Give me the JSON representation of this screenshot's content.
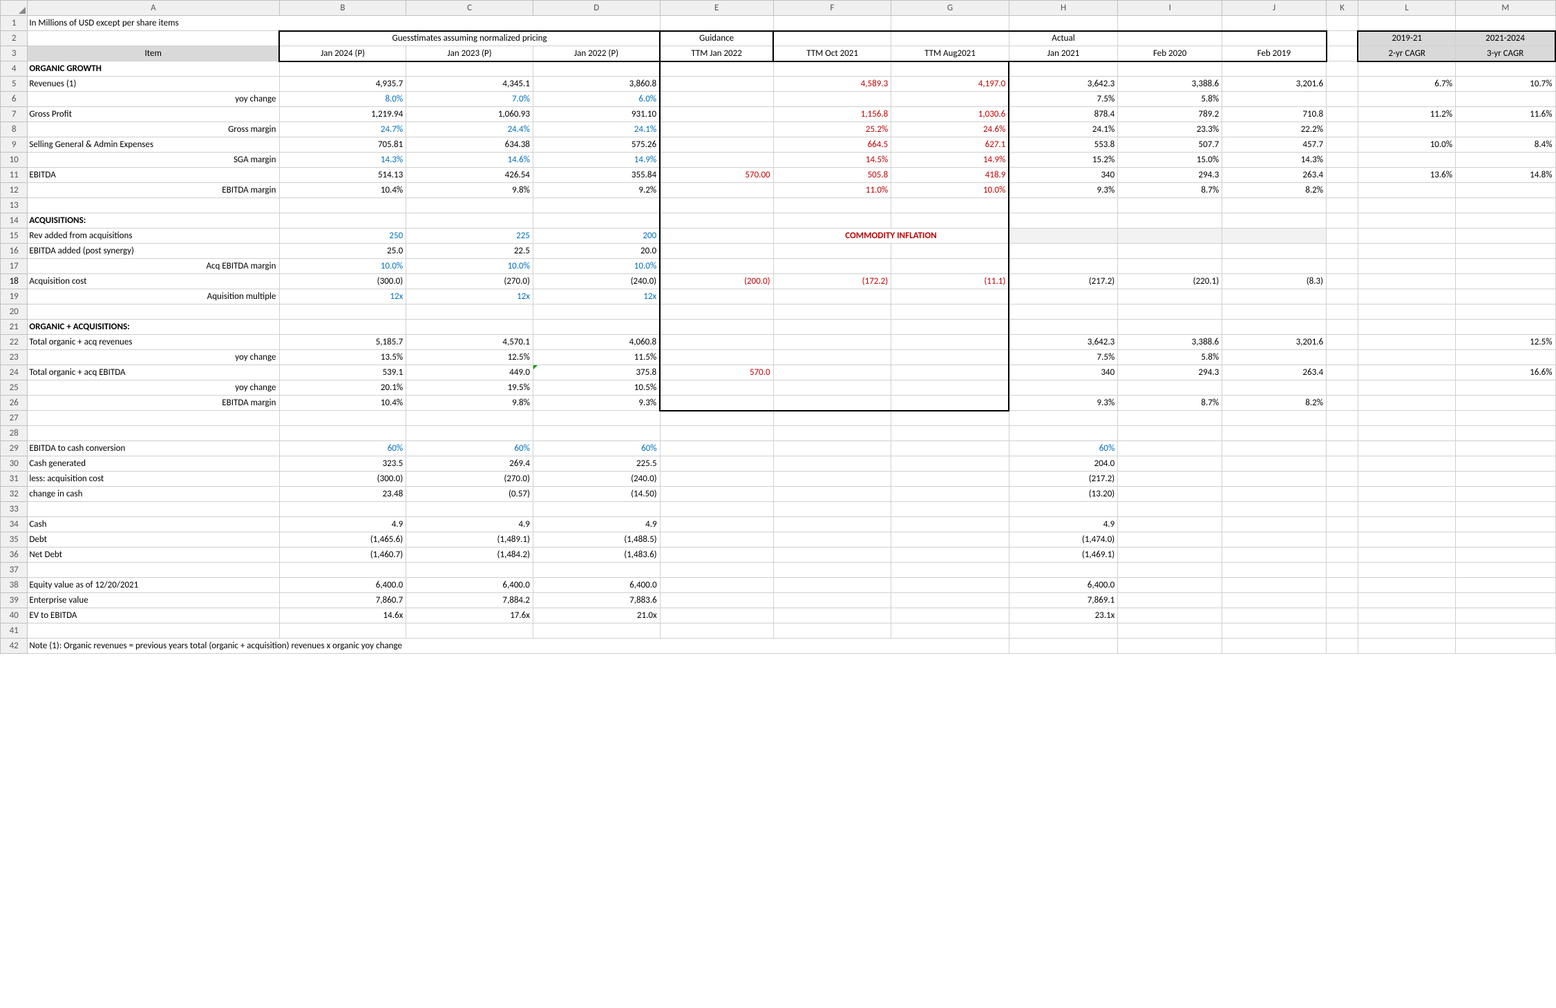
{
  "columns": [
    "A",
    "B",
    "C",
    "D",
    "E",
    "F",
    "G",
    "H",
    "I",
    "J",
    "K",
    "L",
    "M"
  ],
  "title_row": "In Millions of USD except per share items",
  "header2": {
    "guess": "Guesstimates assuming normalized pricing",
    "guidance": "Guidance",
    "actual": "Actual",
    "L": "2019-21",
    "M": "2021-2024"
  },
  "header3": {
    "A": "Item",
    "B": "Jan 2024 (P)",
    "C": "Jan 2023 (P)",
    "D": "Jan 2022 (P)",
    "E": "TTM Jan 2022",
    "F": "TTM Oct 2021",
    "G": "TTM Aug2021",
    "H": "Jan 2021",
    "I": "Feb 2020",
    "J": "Feb 2019",
    "L": "2-yr CAGR",
    "M": "3-yr CAGR"
  },
  "sections": {
    "organic": "ORGANIC GROWTH",
    "acq_hdr": "ACQUISITIONS:",
    "combo_hdr": "ORGANIC + ACQUISITIONS:",
    "commodity": "COMMODITY INFLATION"
  },
  "rows": {
    "r5": {
      "A": "Revenues (1)",
      "B": "4,935.7",
      "C": "4,345.1",
      "D": "3,860.8",
      "F": "4,589.3",
      "G": "4,197.0",
      "H": "3,642.3",
      "I": "3,388.6",
      "J": "3,201.6",
      "L": "6.7%",
      "M": "10.7%"
    },
    "r6": {
      "A": "yoy change",
      "B": "8.0%",
      "C": "7.0%",
      "D": "6.0%",
      "H": "7.5%",
      "I": "5.8%"
    },
    "r7": {
      "A": "Gross Profit",
      "B": "1,219.94",
      "C": "1,060.93",
      "D": "931.10",
      "F": "1,156.8",
      "G": "1,030.6",
      "H": "878.4",
      "I": "789.2",
      "J": "710.8",
      "L": "11.2%",
      "M": "11.6%"
    },
    "r8": {
      "A": "Gross margin",
      "B": "24.7%",
      "C": "24.4%",
      "D": "24.1%",
      "F": "25.2%",
      "G": "24.6%",
      "H": "24.1%",
      "I": "23.3%",
      "J": "22.2%"
    },
    "r9": {
      "A": "Selling General & Admin Expenses",
      "B": "705.81",
      "C": "634.38",
      "D": "575.26",
      "F": "664.5",
      "G": "627.1",
      "H": "553.8",
      "I": "507.7",
      "J": "457.7",
      "L": "10.0%",
      "M": "8.4%"
    },
    "r10": {
      "A": "SGA margin",
      "B": "14.3%",
      "C": "14.6%",
      "D": "14.9%",
      "F": "14.5%",
      "G": "14.9%",
      "H": "15.2%",
      "I": "15.0%",
      "J": "14.3%"
    },
    "r11": {
      "A": "EBITDA",
      "B": "514.13",
      "C": "426.54",
      "D": "355.84",
      "E": "570.00",
      "F": "505.8",
      "G": "418.9",
      "H": "340",
      "I": "294.3",
      "J": "263.4",
      "L": "13.6%",
      "M": "14.8%"
    },
    "r12": {
      "A": "EBITDA margin",
      "B": "10.4%",
      "C": "9.8%",
      "D": "9.2%",
      "F": "11.0%",
      "G": "10.0%",
      "H": "9.3%",
      "I": "8.7%",
      "J": "8.2%"
    },
    "r15": {
      "A": "Rev added from acquisitions",
      "B": "250",
      "C": "225",
      "D": "200"
    },
    "r16": {
      "A": "EBITDA added (post synergy)",
      "B": "25.0",
      "C": "22.5",
      "D": "20.0"
    },
    "r17": {
      "A": "Acq EBITDA margin",
      "B": "10.0%",
      "C": "10.0%",
      "D": "10.0%"
    },
    "r18": {
      "A": "Acquisition cost",
      "B": "(300.0)",
      "C": "(270.0)",
      "D": "(240.0)",
      "E": "(200.0)",
      "F": "(172.2)",
      "G": "(11.1)",
      "H": "(217.2)",
      "I": "(220.1)",
      "J": "(8.3)"
    },
    "r19": {
      "A": "Aquisition multiple",
      "B": "12x",
      "C": "12x",
      "D": "12x"
    },
    "r22": {
      "A": "Total organic + acq revenues",
      "B": "5,185.7",
      "C": "4,570.1",
      "D": "4,060.8",
      "H": "3,642.3",
      "I": "3,388.6",
      "J": "3,201.6",
      "M": "12.5%"
    },
    "r23": {
      "A": "yoy change",
      "B": "13.5%",
      "C": "12.5%",
      "D": "11.5%",
      "H": "7.5%",
      "I": "5.8%"
    },
    "r24": {
      "A": "Total organic + acq EBITDA",
      "B": "539.1",
      "C": "449.0",
      "D": "375.8",
      "E": "570.0",
      "H": "340",
      "I": "294.3",
      "J": "263.4",
      "M": "16.6%"
    },
    "r25": {
      "A": "yoy change",
      "B": "20.1%",
      "C": "19.5%",
      "D": "10.5%"
    },
    "r26": {
      "A": "EBITDA margin",
      "B": "10.4%",
      "C": "9.8%",
      "D": "9.3%",
      "H": "9.3%",
      "I": "8.7%",
      "J": "8.2%"
    },
    "r29": {
      "A": "EBITDA to cash conversion",
      "B": "60%",
      "C": "60%",
      "D": "60%",
      "H": "60%"
    },
    "r30": {
      "A": "Cash generated",
      "B": "323.5",
      "C": "269.4",
      "D": "225.5",
      "H": "204.0"
    },
    "r31": {
      "A": "less: acquisition cost",
      "B": "(300.0)",
      "C": "(270.0)",
      "D": "(240.0)",
      "H": "(217.2)"
    },
    "r32": {
      "A": "change in cash",
      "B": "23.48",
      "C": "(0.57)",
      "D": "(14.50)",
      "H": "(13.20)"
    },
    "r34": {
      "A": "Cash",
      "B": "4.9",
      "C": "4.9",
      "D": "4.9",
      "H": "4.9"
    },
    "r35": {
      "A": "Debt",
      "B": "(1,465.6)",
      "C": "(1,489.1)",
      "D": "(1,488.5)",
      "H": "(1,474.0)"
    },
    "r36": {
      "A": "Net Debt",
      "B": "(1,460.7)",
      "C": "(1,484.2)",
      "D": "(1,483.6)",
      "H": "(1,469.1)"
    },
    "r38": {
      "A": "Equity value as of 12/20/2021",
      "B": "6,400.0",
      "C": "6,400.0",
      "D": "6,400.0",
      "H": "6,400.0"
    },
    "r39": {
      "A": "Enterprise value",
      "B": "7,860.7",
      "C": "7,884.2",
      "D": "7,883.6",
      "H": "7,869.1"
    },
    "r40": {
      "A": "EV to EBITDA",
      "B": "14.6x",
      "C": "17.6x",
      "D": "21.0x",
      "H": "23.1x"
    },
    "r42": {
      "A": "Note (1): Organic revenues = previous years total (organic + acquisition) revenues x organic yoy change"
    }
  },
  "styling": {
    "grid_color": "#d0d0d0",
    "header_bg": "#f0f0f0",
    "thick_border": "#000000",
    "blue_text": "#0070c0",
    "red_text": "#c00000",
    "grey_fill": "#d9d9d9",
    "light_grey_fill": "#f2f2f2",
    "font_family": "Calibri",
    "font_size_pt": 10
  }
}
